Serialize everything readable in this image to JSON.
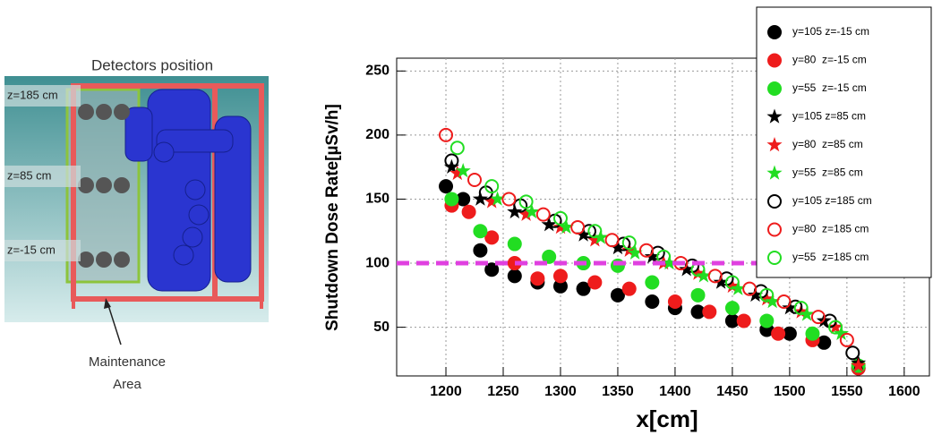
{
  "diagram": {
    "title": "Detectors position",
    "levels": [
      "z=185 cm",
      "z=85 cm",
      "z=-15 cm"
    ],
    "area_label": [
      "Maintenance",
      "Area"
    ]
  },
  "chart_data": {
    "type": "scatter",
    "y_label": "Shutdown Dose Rate[µSv/h]",
    "x_label": "x[cm]",
    "xlim": [
      1157,
      1622
    ],
    "xticks": [
      1200,
      1250,
      1300,
      1350,
      1400,
      1450,
      1500,
      1550,
      1600
    ],
    "ylim": [
      12,
      260
    ],
    "yticks": [
      50,
      100,
      150,
      200,
      250
    ],
    "grid": true,
    "legend": "upper right",
    "reference_line": {
      "value": 100,
      "color": "#e040e0"
    },
    "series": [
      {
        "name": "y=105 z=-15 cm",
        "color": "#000000",
        "marker": "circle",
        "x": [
          1200,
          1215,
          1230,
          1240,
          1260,
          1280,
          1300,
          1320,
          1350,
          1380,
          1400,
          1420,
          1450,
          1480,
          1500,
          1530,
          1560
        ],
        "values": [
          160,
          150,
          110,
          95,
          90,
          85,
          82,
          80,
          75,
          70,
          65,
          62,
          55,
          48,
          45,
          38,
          18
        ]
      },
      {
        "name": "y=80  z=-15 cm",
        "color": "#ee1c1c",
        "marker": "circle",
        "x": [
          1205,
          1220,
          1240,
          1260,
          1280,
          1300,
          1330,
          1360,
          1400,
          1430,
          1460,
          1490,
          1520,
          1560
        ],
        "values": [
          145,
          140,
          120,
          100,
          88,
          90,
          85,
          80,
          70,
          62,
          55,
          45,
          40,
          18
        ]
      },
      {
        "name": "y=55  z=-15 cm",
        "color": "#22dd22",
        "marker": "circle",
        "x": [
          1205,
          1230,
          1260,
          1290,
          1320,
          1350,
          1380,
          1420,
          1450,
          1480,
          1520,
          1560
        ],
        "values": [
          150,
          125,
          115,
          105,
          100,
          98,
          85,
          75,
          65,
          55,
          45,
          20
        ]
      },
      {
        "name": "y=105 z=85 cm",
        "color": "#000000",
        "marker": "star",
        "x": [
          1205,
          1230,
          1260,
          1290,
          1320,
          1350,
          1380,
          1410,
          1440,
          1470,
          1500,
          1530,
          1560
        ],
        "values": [
          175,
          150,
          140,
          130,
          122,
          112,
          105,
          95,
          85,
          75,
          65,
          55,
          22
        ]
      },
      {
        "name": "y=80  z=85 cm",
        "color": "#ee1c1c",
        "marker": "star",
        "x": [
          1210,
          1240,
          1270,
          1300,
          1330,
          1360,
          1390,
          1420,
          1450,
          1480,
          1510,
          1540,
          1560
        ],
        "values": [
          170,
          148,
          138,
          128,
          118,
          110,
          100,
          92,
          82,
          72,
          62,
          50,
          20
        ]
      },
      {
        "name": "y=55  z=85 cm",
        "color": "#22dd22",
        "marker": "star",
        "x": [
          1215,
          1245,
          1275,
          1305,
          1335,
          1365,
          1395,
          1425,
          1455,
          1485,
          1515,
          1545
        ],
        "values": [
          172,
          150,
          140,
          128,
          120,
          108,
          100,
          90,
          80,
          70,
          60,
          45
        ]
      },
      {
        "name": "y=105 z=185 cm",
        "color": "#000000",
        "marker": "open-circle",
        "x": [
          1205,
          1235,
          1265,
          1295,
          1325,
          1355,
          1385,
          1415,
          1445,
          1475,
          1505,
          1535,
          1555
        ],
        "values": [
          180,
          155,
          145,
          133,
          125,
          115,
          108,
          98,
          88,
          78,
          66,
          55,
          30
        ]
      },
      {
        "name": "y=80  z=185 cm",
        "color": "#ee1c1c",
        "marker": "open-circle",
        "x": [
          1200,
          1225,
          1255,
          1285,
          1315,
          1345,
          1375,
          1405,
          1435,
          1465,
          1495,
          1525,
          1550
        ],
        "values": [
          200,
          165,
          150,
          138,
          128,
          118,
          110,
          100,
          90,
          80,
          70,
          58,
          40
        ]
      },
      {
        "name": "y=55  z=185 cm",
        "color": "#22dd22",
        "marker": "open-circle",
        "x": [
          1210,
          1240,
          1270,
          1300,
          1330,
          1360,
          1390,
          1420,
          1450,
          1480,
          1510,
          1540
        ],
        "values": [
          190,
          160,
          148,
          135,
          125,
          116,
          105,
          95,
          85,
          75,
          65,
          50
        ]
      }
    ]
  }
}
